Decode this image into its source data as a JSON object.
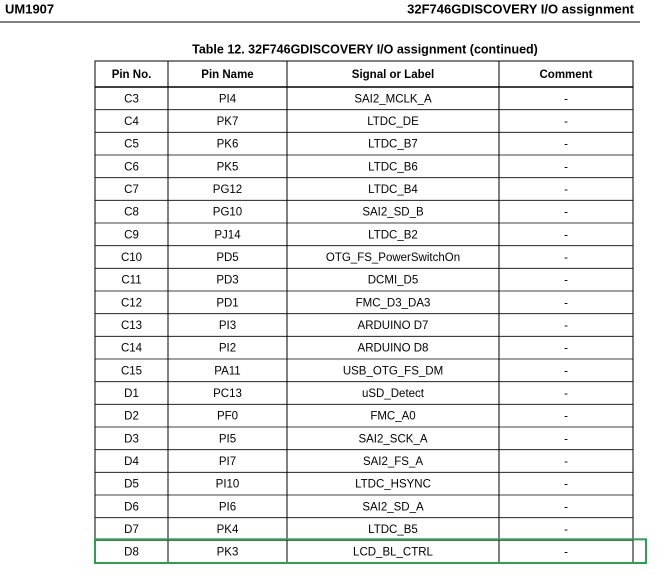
{
  "header": {
    "left": "UM1907",
    "right": "32F746GDISCOVERY I/O assignment"
  },
  "table": {
    "caption": "Table 12. 32F746GDISCOVERY I/O assignment (continued)",
    "columns": [
      "Pin No.",
      "Pin Name",
      "Signal or Label",
      "Comment"
    ],
    "rows": [
      [
        "C3",
        "PI4",
        "SAI2_MCLK_A",
        "-"
      ],
      [
        "C4",
        "PK7",
        "LTDC_DE",
        "-"
      ],
      [
        "C5",
        "PK6",
        "LTDC_B7",
        "-"
      ],
      [
        "C6",
        "PK5",
        "LTDC_B6",
        "-"
      ],
      [
        "C7",
        "PG12",
        "LTDC_B4",
        "-"
      ],
      [
        "C8",
        "PG10",
        "SAI2_SD_B",
        "-"
      ],
      [
        "C9",
        "PJ14",
        "LTDC_B2",
        "-"
      ],
      [
        "C10",
        "PD5",
        "OTG_FS_PowerSwitchOn",
        "-"
      ],
      [
        "C11",
        "PD3",
        "DCMI_D5",
        "-"
      ],
      [
        "C12",
        "PD1",
        "FMC_D3_DA3",
        "-"
      ],
      [
        "C13",
        "PI3",
        "ARDUINO D7",
        "-"
      ],
      [
        "C14",
        "PI2",
        "ARDUINO D8",
        "-"
      ],
      [
        "C15",
        "PA11",
        "USB_OTG_FS_DM",
        "-"
      ],
      [
        "D1",
        "PC13",
        "uSD_Detect",
        "-"
      ],
      [
        "D2",
        "PF0",
        "FMC_A0",
        "-"
      ],
      [
        "D3",
        "PI5",
        "SAI2_SCK_A",
        "-"
      ],
      [
        "D4",
        "PI7",
        "SAI2_FS_A",
        "-"
      ],
      [
        "D5",
        "PI10",
        "LTDC_HSYNC",
        "-"
      ],
      [
        "D6",
        "PI6",
        "SAI2_SD_A",
        "-"
      ],
      [
        "D7",
        "PK4",
        "LTDC_B5",
        "-"
      ],
      [
        "D8",
        "PK3",
        "LCD_BL_CTRL",
        "-"
      ]
    ]
  }
}
